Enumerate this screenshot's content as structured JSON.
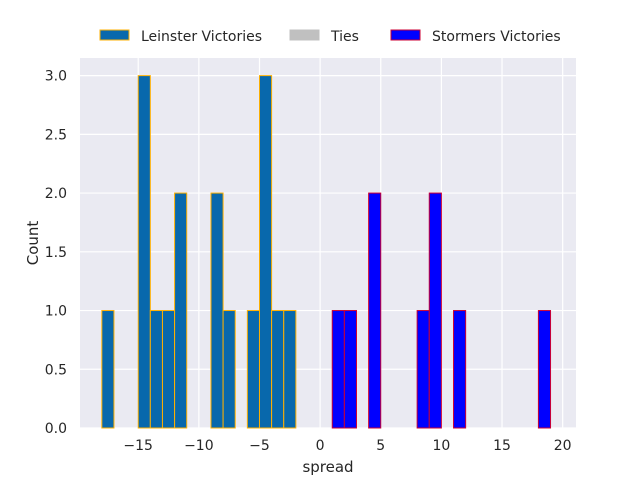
{
  "chart_data": {
    "type": "bar",
    "subtype": "histogram",
    "title": "",
    "xlabel": "spread",
    "ylabel": "Count",
    "xlim": [
      -19.8,
      21.1
    ],
    "ylim": [
      0,
      3.15
    ],
    "bin_width": 1,
    "xticks": [
      -15,
      -10,
      -5,
      0,
      5,
      10,
      15,
      20
    ],
    "xtick_labels": [
      "−15",
      "−10",
      "−5",
      "0",
      "5",
      "10",
      "15",
      "20"
    ],
    "yticks": [
      0,
      0.5,
      1,
      1.5,
      2,
      2.5,
      3
    ],
    "ytick_labels": [
      "0.0",
      "0.5",
      "1.0",
      "1.5",
      "2.0",
      "2.5",
      "3.0"
    ],
    "grid": true,
    "legend_position": "top-center",
    "series": [
      {
        "name": "Leinster Victories",
        "fill": "#0868ac",
        "edge": "#ffb000",
        "bins": [
          {
            "x": -17.5,
            "count": 1
          },
          {
            "x": -14.5,
            "count": 3
          },
          {
            "x": -13.5,
            "count": 1
          },
          {
            "x": -12.5,
            "count": 1
          },
          {
            "x": -11.5,
            "count": 2
          },
          {
            "x": -8.5,
            "count": 2
          },
          {
            "x": -7.5,
            "count": 1
          },
          {
            "x": -5.5,
            "count": 1
          },
          {
            "x": -4.5,
            "count": 3
          },
          {
            "x": -3.5,
            "count": 1
          },
          {
            "x": -2.5,
            "count": 1
          }
        ]
      },
      {
        "name": "Ties",
        "fill": "#c0c0c0",
        "edge": "#c0c0c0",
        "bins": []
      },
      {
        "name": "Stormers Victories",
        "fill": "#0000ff",
        "edge": "#cc0033",
        "bins": [
          {
            "x": 1.5,
            "count": 1
          },
          {
            "x": 2.5,
            "count": 1
          },
          {
            "x": 4.5,
            "count": 2
          },
          {
            "x": 8.5,
            "count": 1
          },
          {
            "x": 9.5,
            "count": 2
          },
          {
            "x": 11.5,
            "count": 1
          },
          {
            "x": 18.5,
            "count": 1
          }
        ]
      }
    ],
    "colors": {
      "plot_background": "#eaeaf2",
      "grid": "#ffffff",
      "text": "#262626"
    }
  }
}
